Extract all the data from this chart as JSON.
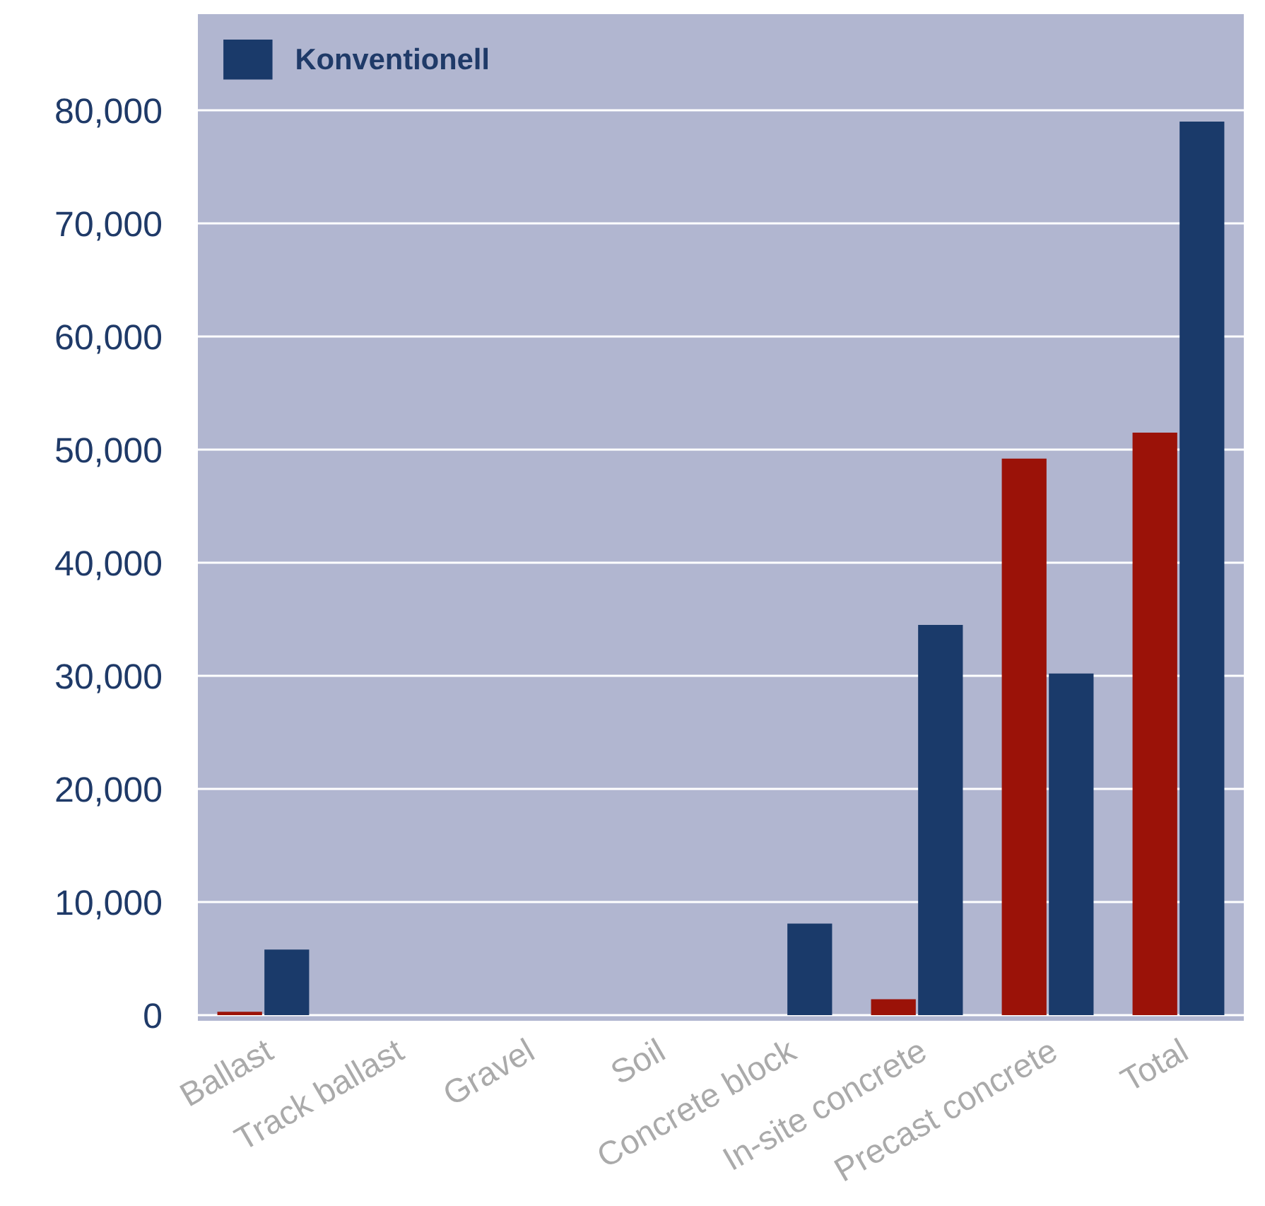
{
  "chart_data": {
    "type": "bar",
    "categories": [
      "Ballast",
      "Track ballast",
      "Gravel",
      "Soil",
      "Concrete block",
      "In-site concrete",
      "Precast concrete",
      "Total"
    ],
    "series": [
      {
        "color": "#9b1208",
        "values": [
          300,
          0,
          0,
          0,
          0,
          1400,
          49200,
          51500
        ]
      },
      {
        "name": "Konventionell",
        "color": "#1a3a6a",
        "values": [
          5800,
          0,
          0,
          0,
          8100,
          34500,
          30200,
          79000
        ]
      }
    ],
    "ylim": [
      -500,
      88500
    ],
    "yticks": [
      {
        "value": 0,
        "label": "0"
      },
      {
        "value": 10000,
        "label": "10,000"
      },
      {
        "value": 20000,
        "label": "20,000"
      },
      {
        "value": 30000,
        "label": "30,000"
      },
      {
        "value": 40000,
        "label": "40,000"
      },
      {
        "value": 50000,
        "label": "50,000"
      },
      {
        "value": 60000,
        "label": "60,000"
      },
      {
        "value": 70000,
        "label": "70,000"
      },
      {
        "value": 80000,
        "label": "80,000"
      }
    ],
    "grid": "y",
    "legend": "top left"
  }
}
